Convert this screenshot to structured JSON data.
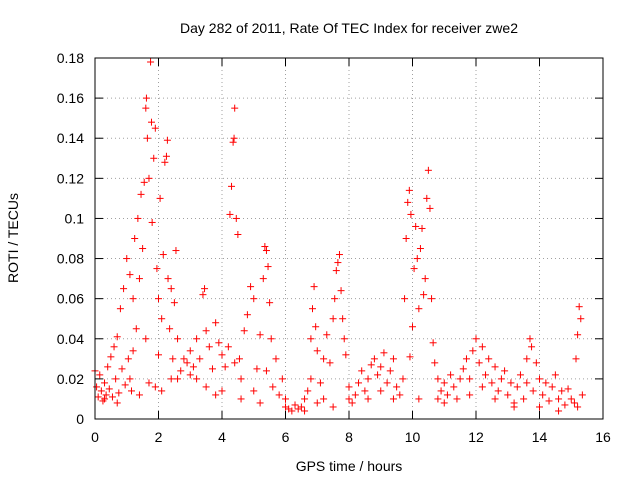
{
  "chart_data": {
    "type": "scatter",
    "title": "Day 282 of 2011, Rate Of TEC Index for receiver zwe2",
    "xlabel": "GPS time / hours",
    "ylabel": "ROTI / TECUs",
    "xlim": [
      0,
      16
    ],
    "ylim": [
      0,
      0.18
    ],
    "xticks": [
      0,
      2,
      4,
      6,
      8,
      10,
      12,
      14,
      16
    ],
    "yticks": [
      0,
      0.02,
      0.04,
      0.06,
      0.08,
      0.1,
      0.12,
      0.14,
      0.16,
      0.18
    ],
    "xtick_labels": [
      "0",
      "2",
      "4",
      "6",
      "8",
      "10",
      "12",
      "14",
      "16"
    ],
    "ytick_labels": [
      "0",
      "0.02",
      "0.04",
      "0.06",
      "0.08",
      "0.1",
      "0.12",
      "0.14",
      "0.16",
      "0.18"
    ],
    "grid": true,
    "marker": "+",
    "color": "#ff0000",
    "series": [
      {
        "name": "ROTI",
        "points": [
          [
            0.0,
            0.024
          ],
          [
            0.05,
            0.016
          ],
          [
            0.1,
            0.011
          ],
          [
            0.15,
            0.022
          ],
          [
            0.2,
            0.014
          ],
          [
            0.25,
            0.009
          ],
          [
            0.3,
            0.018
          ],
          [
            0.35,
            0.012
          ],
          [
            0.4,
            0.026
          ],
          [
            0.45,
            0.015
          ],
          [
            0.5,
            0.031
          ],
          [
            0.55,
            0.011
          ],
          [
            0.6,
            0.036
          ],
          [
            0.65,
            0.02
          ],
          [
            0.7,
            0.041
          ],
          [
            0.75,
            0.013
          ],
          [
            0.8,
            0.055
          ],
          [
            0.85,
            0.025
          ],
          [
            0.9,
            0.065
          ],
          [
            0.95,
            0.017
          ],
          [
            1.0,
            0.08
          ],
          [
            1.05,
            0.03
          ],
          [
            1.1,
            0.072
          ],
          [
            1.15,
            0.014
          ],
          [
            1.2,
            0.06
          ],
          [
            1.25,
            0.09
          ],
          [
            1.3,
            0.045
          ],
          [
            1.35,
            0.1
          ],
          [
            1.4,
            0.07
          ],
          [
            1.45,
            0.112
          ],
          [
            1.5,
            0.085
          ],
          [
            1.55,
            0.118
          ],
          [
            1.6,
            0.155
          ],
          [
            1.62,
            0.16
          ],
          [
            1.65,
            0.14
          ],
          [
            1.7,
            0.12
          ],
          [
            1.75,
            0.178
          ],
          [
            1.78,
            0.148
          ],
          [
            1.8,
            0.098
          ],
          [
            1.85,
            0.13
          ],
          [
            1.9,
            0.145
          ],
          [
            1.95,
            0.075
          ],
          [
            2.0,
            0.06
          ],
          [
            2.05,
            0.11
          ],
          [
            2.1,
            0.05
          ],
          [
            2.15,
            0.082
          ],
          [
            2.2,
            0.128
          ],
          [
            2.25,
            0.131
          ],
          [
            2.28,
            0.139
          ],
          [
            2.3,
            0.07
          ],
          [
            2.35,
            0.045
          ],
          [
            2.4,
            0.065
          ],
          [
            2.45,
            0.03
          ],
          [
            2.5,
            0.058
          ],
          [
            2.55,
            0.084
          ],
          [
            2.6,
            0.04
          ],
          [
            1.7,
            0.018
          ],
          [
            1.9,
            0.016
          ],
          [
            2.1,
            0.014
          ],
          [
            2.4,
            0.02
          ],
          [
            2.7,
            0.024
          ],
          [
            2.8,
            0.03
          ],
          [
            2.9,
            0.028
          ],
          [
            3.0,
            0.034
          ],
          [
            3.1,
            0.026
          ],
          [
            3.2,
            0.04
          ],
          [
            3.3,
            0.03
          ],
          [
            3.4,
            0.062
          ],
          [
            3.45,
            0.065
          ],
          [
            3.5,
            0.044
          ],
          [
            3.6,
            0.036
          ],
          [
            3.7,
            0.025
          ],
          [
            3.8,
            0.048
          ],
          [
            3.9,
            0.038
          ],
          [
            4.0,
            0.032
          ],
          [
            4.1,
            0.026
          ],
          [
            4.2,
            0.036
          ],
          [
            4.25,
            0.102
          ],
          [
            4.3,
            0.116
          ],
          [
            4.35,
            0.138
          ],
          [
            4.38,
            0.14
          ],
          [
            4.4,
            0.155
          ],
          [
            4.45,
            0.1
          ],
          [
            4.5,
            0.092
          ],
          [
            4.55,
            0.03
          ],
          [
            4.6,
            0.02
          ],
          [
            4.7,
            0.044
          ],
          [
            4.8,
            0.052
          ],
          [
            4.9,
            0.066
          ],
          [
            5.0,
            0.06
          ],
          [
            5.1,
            0.025
          ],
          [
            5.2,
            0.042
          ],
          [
            5.3,
            0.07
          ],
          [
            5.35,
            0.086
          ],
          [
            5.4,
            0.084
          ],
          [
            5.45,
            0.076
          ],
          [
            5.5,
            0.058
          ],
          [
            5.55,
            0.04
          ],
          [
            5.6,
            0.016
          ],
          [
            5.7,
            0.03
          ],
          [
            5.8,
            0.012
          ],
          [
            5.9,
            0.02
          ],
          [
            6.0,
            0.006
          ],
          [
            6.1,
            0.005
          ],
          [
            6.2,
            0.004
          ],
          [
            6.3,
            0.007
          ],
          [
            6.4,
            0.005
          ],
          [
            6.5,
            0.006
          ],
          [
            6.6,
            0.01
          ],
          [
            6.7,
            0.014
          ],
          [
            6.8,
            0.04
          ],
          [
            6.85,
            0.055
          ],
          [
            6.9,
            0.066
          ],
          [
            6.95,
            0.046
          ],
          [
            7.0,
            0.034
          ],
          [
            7.1,
            0.018
          ],
          [
            7.2,
            0.03
          ],
          [
            7.3,
            0.042
          ],
          [
            7.4,
            0.028
          ],
          [
            7.5,
            0.05
          ],
          [
            7.55,
            0.06
          ],
          [
            7.6,
            0.074
          ],
          [
            7.65,
            0.078
          ],
          [
            7.7,
            0.082
          ],
          [
            7.75,
            0.064
          ],
          [
            7.8,
            0.05
          ],
          [
            7.85,
            0.04
          ],
          [
            7.9,
            0.032
          ],
          [
            8.0,
            0.016
          ],
          [
            8.1,
            0.008
          ],
          [
            8.2,
            0.012
          ],
          [
            8.3,
            0.018
          ],
          [
            8.4,
            0.024
          ],
          [
            8.5,
            0.014
          ],
          [
            8.6,
            0.02
          ],
          [
            8.7,
            0.027
          ],
          [
            8.8,
            0.03
          ],
          [
            8.9,
            0.022
          ],
          [
            9.0,
            0.026
          ],
          [
            9.1,
            0.033
          ],
          [
            9.2,
            0.018
          ],
          [
            9.3,
            0.024
          ],
          [
            9.4,
            0.03
          ],
          [
            9.5,
            0.016
          ],
          [
            9.6,
            0.012
          ],
          [
            9.7,
            0.02
          ],
          [
            9.75,
            0.06
          ],
          [
            9.8,
            0.09
          ],
          [
            9.85,
            0.108
          ],
          [
            9.9,
            0.114
          ],
          [
            9.92,
            0.031
          ],
          [
            9.95,
            0.102
          ],
          [
            10.0,
            0.046
          ],
          [
            10.05,
            0.075
          ],
          [
            10.1,
            0.096
          ],
          [
            10.15,
            0.08
          ],
          [
            10.2,
            0.055
          ],
          [
            10.25,
            0.085
          ],
          [
            10.3,
            0.095
          ],
          [
            10.35,
            0.062
          ],
          [
            10.4,
            0.07
          ],
          [
            10.45,
            0.11
          ],
          [
            10.5,
            0.124
          ],
          [
            10.55,
            0.105
          ],
          [
            10.6,
            0.06
          ],
          [
            10.65,
            0.038
          ],
          [
            10.7,
            0.028
          ],
          [
            10.8,
            0.02
          ],
          [
            10.9,
            0.014
          ],
          [
            11.0,
            0.018
          ],
          [
            11.1,
            0.012
          ],
          [
            11.2,
            0.022
          ],
          [
            11.3,
            0.016
          ],
          [
            11.4,
            0.01
          ],
          [
            11.5,
            0.02
          ],
          [
            11.6,
            0.025
          ],
          [
            11.7,
            0.03
          ],
          [
            11.8,
            0.02
          ],
          [
            11.9,
            0.034
          ],
          [
            12.0,
            0.04
          ],
          [
            12.1,
            0.028
          ],
          [
            12.2,
            0.036
          ],
          [
            12.3,
            0.022
          ],
          [
            12.4,
            0.03
          ],
          [
            12.5,
            0.018
          ],
          [
            12.6,
            0.026
          ],
          [
            12.7,
            0.014
          ],
          [
            12.8,
            0.02
          ],
          [
            12.9,
            0.024
          ],
          [
            13.0,
            0.012
          ],
          [
            13.1,
            0.018
          ],
          [
            13.2,
            0.008
          ],
          [
            13.3,
            0.016
          ],
          [
            13.4,
            0.022
          ],
          [
            13.5,
            0.01
          ],
          [
            13.6,
            0.03
          ],
          [
            13.7,
            0.04
          ],
          [
            13.75,
            0.036
          ],
          [
            13.8,
            0.014
          ],
          [
            13.9,
            0.028
          ],
          [
            14.0,
            0.02
          ],
          [
            14.1,
            0.012
          ],
          [
            14.2,
            0.018
          ],
          [
            14.3,
            0.009
          ],
          [
            14.4,
            0.016
          ],
          [
            14.5,
            0.022
          ],
          [
            14.6,
            0.01
          ],
          [
            14.7,
            0.014
          ],
          [
            14.8,
            0.007
          ],
          [
            14.9,
            0.015
          ],
          [
            15.0,
            0.01
          ],
          [
            15.1,
            0.008
          ],
          [
            15.15,
            0.03
          ],
          [
            15.2,
            0.042
          ],
          [
            15.25,
            0.056
          ],
          [
            15.3,
            0.05
          ],
          [
            15.35,
            0.012
          ],
          [
            0.3,
            0.01
          ],
          [
            0.7,
            0.008
          ],
          [
            1.1,
            0.02
          ],
          [
            1.4,
            0.012
          ],
          [
            2.6,
            0.02
          ],
          [
            3.0,
            0.022
          ],
          [
            3.5,
            0.016
          ],
          [
            4.0,
            0.014
          ],
          [
            4.6,
            0.01
          ],
          [
            5.0,
            0.014
          ],
          [
            5.2,
            0.008
          ],
          [
            6.0,
            0.01
          ],
          [
            6.6,
            0.004
          ],
          [
            7.0,
            0.008
          ],
          [
            7.5,
            0.006
          ],
          [
            8.0,
            0.01
          ],
          [
            9.0,
            0.014
          ],
          [
            10.2,
            0.01
          ],
          [
            11.0,
            0.008
          ],
          [
            11.8,
            0.012
          ],
          [
            12.6,
            0.01
          ],
          [
            13.2,
            0.006
          ],
          [
            14.0,
            0.006
          ],
          [
            14.6,
            0.004
          ],
          [
            15.2,
            0.006
          ],
          [
            1.2,
            0.034
          ],
          [
            1.6,
            0.04
          ],
          [
            2.0,
            0.032
          ],
          [
            3.2,
            0.02
          ],
          [
            3.8,
            0.012
          ],
          [
            4.4,
            0.028
          ],
          [
            5.4,
            0.024
          ],
          [
            6.8,
            0.02
          ],
          [
            7.2,
            0.01
          ],
          [
            8.6,
            0.01
          ],
          [
            9.4,
            0.01
          ],
          [
            10.8,
            0.01
          ],
          [
            12.2,
            0.016
          ],
          [
            13.6,
            0.018
          ]
        ]
      }
    ]
  }
}
